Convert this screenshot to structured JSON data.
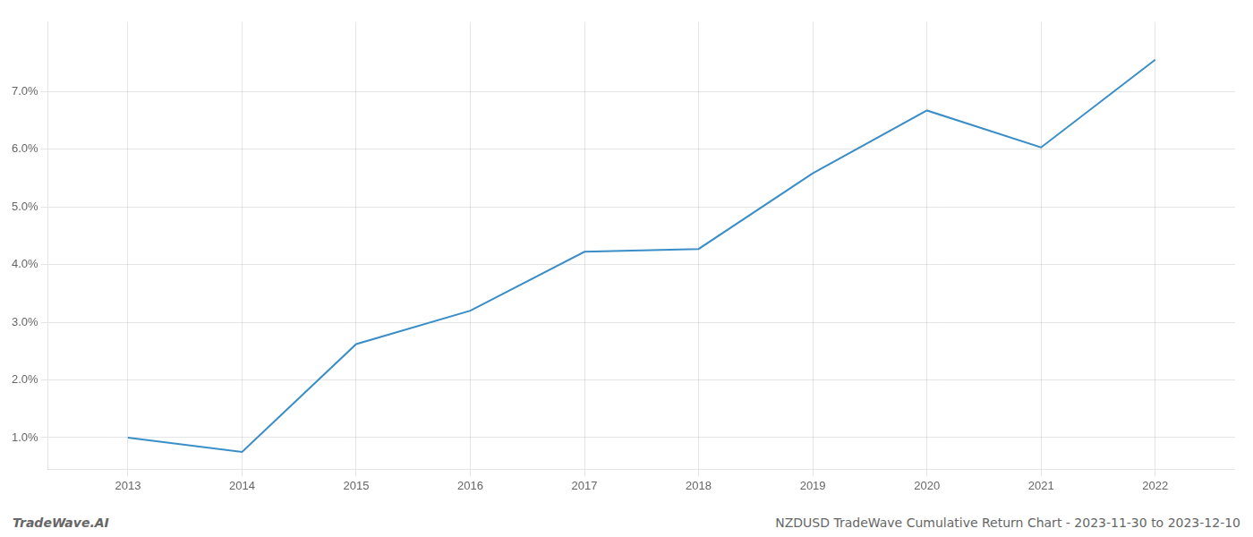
{
  "chart_data": {
    "type": "line",
    "x": [
      2013,
      2014,
      2015,
      2016,
      2017,
      2018,
      2019,
      2020,
      2021,
      2022
    ],
    "values": [
      1.0,
      0.75,
      2.62,
      3.2,
      4.22,
      4.27,
      5.58,
      6.67,
      6.03,
      7.55
    ],
    "color": "#3a8ec8",
    "xlim": [
      2012.3,
      2022.7
    ],
    "ylim": [
      0.45,
      8.2
    ],
    "xticks": [
      2013,
      2014,
      2015,
      2016,
      2017,
      2018,
      2019,
      2020,
      2021,
      2022
    ],
    "yticks": [
      {
        "value": 1.0,
        "label": "1.0%"
      },
      {
        "value": 2.0,
        "label": "2.0%"
      },
      {
        "value": 3.0,
        "label": "3.0%"
      },
      {
        "value": 4.0,
        "label": "4.0%"
      },
      {
        "value": 5.0,
        "label": "5.0%"
      },
      {
        "value": 6.0,
        "label": "6.0%"
      },
      {
        "value": 7.0,
        "label": "7.0%"
      }
    ],
    "grid": true,
    "annotations": [
      "TradeWave.AI",
      "NZDUSD TradeWave Cumulative Return Chart - 2023-11-30 to 2023-12-10"
    ]
  }
}
